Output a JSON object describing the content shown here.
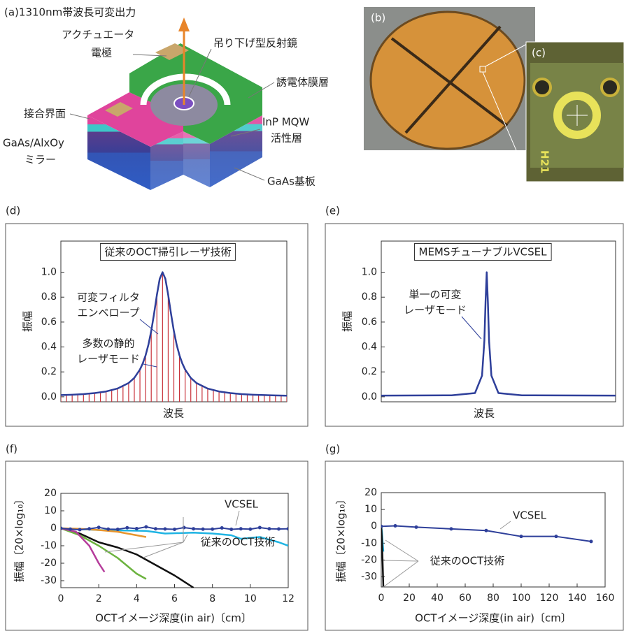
{
  "figure_a": {
    "label": "(a)1310nm帯波長可変出力",
    "callouts": [
      {
        "lines": [
          "アクチュエータ",
          "電極"
        ]
      },
      {
        "lines": [
          "吊り下げ型反射鏡"
        ]
      },
      {
        "lines": [
          "誘電体膜層"
        ]
      },
      {
        "lines": [
          "接合界面"
        ]
      },
      {
        "lines": [
          "InP MQW",
          "活性層"
        ]
      },
      {
        "lines": [
          "GaAs/AlxOy",
          "ミラー"
        ]
      },
      {
        "lines": [
          "GaAs基板"
        ]
      }
    ]
  },
  "photo_b": {
    "label": "(b)"
  },
  "photo_c": {
    "label": "(c)",
    "marking": "H21"
  },
  "chart_data": [
    {
      "type": "line",
      "panel_label": "(d)",
      "title": "従来のOCT掃引レーザ技術",
      "xlabel": "波長",
      "ylabel": "振幅",
      "xlim": [
        0,
        1
      ],
      "ylim": [
        -0.04,
        1.25
      ],
      "yticks": [
        {
          "value": 0,
          "label": "0.0"
        },
        0.2,
        0.4,
        0.6,
        0.8,
        {
          "value": 1,
          "label": "1.0"
        }
      ],
      "annotations": [
        {
          "lines": [
            "可変フィルタ",
            "エンベロープ"
          ]
        },
        {
          "lines": [
            "多数の静的",
            "レーザモード"
          ]
        }
      ],
      "series": [
        {
          "color": "#c8323a",
          "stems": true,
          "x": [
            0,
            0.025,
            0.05,
            0.075,
            0.1,
            0.125,
            0.15,
            0.175,
            0.2,
            0.225,
            0.25,
            0.275,
            0.3,
            0.325,
            0.35,
            0.375,
            0.4,
            0.425,
            0.45,
            0.475,
            0.5,
            0.525,
            0.55,
            0.575,
            0.6,
            0.625,
            0.65,
            0.675,
            0.7,
            0.725,
            0.75,
            0.775,
            0.8,
            0.825,
            0.85,
            0.875,
            0.9,
            0.925,
            0.95,
            0.975,
            1
          ],
          "values": [
            0.014,
            0.015,
            0.017,
            0.02,
            0.022,
            0.026,
            0.03,
            0.036,
            0.043,
            0.053,
            0.066,
            0.084,
            0.111,
            0.152,
            0.219,
            0.333,
            0.529,
            0.818,
            1.0,
            0.818,
            0.529,
            0.333,
            0.219,
            0.152,
            0.111,
            0.084,
            0.066,
            0.053,
            0.043,
            0.036,
            0.03,
            0.026,
            0.022,
            0.02,
            0.017,
            0.015,
            0.014,
            0.012,
            0.011,
            0.01,
            0.009
          ]
        },
        {
          "color": "#2e3f9a",
          "x": [
            0,
            0.05,
            0.1,
            0.15,
            0.2,
            0.25,
            0.3,
            0.325,
            0.35,
            0.3625,
            0.375,
            0.3875,
            0.4,
            0.4125,
            0.425,
            0.4375,
            0.45,
            0.4625,
            0.475,
            0.4875,
            0.5,
            0.5125,
            0.525,
            0.5375,
            0.55,
            0.575,
            0.6,
            0.65,
            0.7,
            0.75,
            0.8,
            0.85,
            0.9,
            0.95,
            1
          ],
          "values": [
            0.014,
            0.017,
            0.022,
            0.03,
            0.043,
            0.066,
            0.111,
            0.152,
            0.219,
            0.268,
            0.333,
            0.418,
            0.529,
            0.667,
            0.818,
            0.947,
            1,
            0.947,
            0.818,
            0.667,
            0.529,
            0.418,
            0.333,
            0.268,
            0.219,
            0.152,
            0.111,
            0.066,
            0.043,
            0.03,
            0.022,
            0.017,
            0.014,
            0.011,
            0.009
          ]
        }
      ]
    },
    {
      "type": "line",
      "panel_label": "(e)",
      "title": "MEMSチューナブルVCSEL",
      "xlabel": "波長",
      "ylabel": "振幅",
      "xlim": [
        0,
        1
      ],
      "ylim": [
        -0.04,
        1.25
      ],
      "yticks": [
        {
          "value": 0,
          "label": "0.0"
        },
        0.2,
        0.4,
        0.6,
        0.8,
        {
          "value": 1,
          "label": "1.0"
        }
      ],
      "annotations": [
        {
          "lines": [
            "単一の可変",
            "レーザモード"
          ]
        }
      ],
      "series": [
        {
          "color": "#2e3f9a",
          "x": [
            0,
            0.3,
            0.4,
            0.43,
            0.44,
            0.445,
            0.45,
            0.455,
            0.46,
            0.47,
            0.5,
            0.6,
            1
          ],
          "values": [
            0.01,
            0.012,
            0.03,
            0.17,
            0.45,
            0.76,
            1,
            0.76,
            0.45,
            0.17,
            0.03,
            0.012,
            0.01
          ]
        }
      ]
    },
    {
      "type": "line",
      "panel_label": "(f)",
      "xlabel": "OCTイメージ深度(in air)〔cm〕",
      "ylabel": "振幅〔20×log₁₀〕",
      "xlim": [
        0,
        12
      ],
      "ylim": [
        -34,
        20
      ],
      "xticks": [
        0,
        2,
        4,
        6,
        8,
        10,
        12
      ],
      "yticks": [
        20,
        10,
        0,
        -10,
        -20,
        -30
      ],
      "annotations": [
        {
          "lines": [
            "VCSEL"
          ]
        },
        {
          "lines": [
            "従来のOCT技術"
          ]
        }
      ],
      "series": [
        {
          "color": "#1fb4e3",
          "x": [
            0,
            2,
            4.5,
            5.5,
            7,
            8,
            9,
            9.5,
            10.5,
            11.5,
            12
          ],
          "values": [
            0,
            -1,
            -1.5,
            -3,
            -2.5,
            -3,
            -4,
            -6,
            -5,
            -8,
            -10
          ]
        },
        {
          "color": "#e8952d",
          "x": [
            0,
            1,
            2,
            3,
            4.5
          ],
          "values": [
            0,
            -0.3,
            -1,
            -2,
            -5
          ]
        },
        {
          "color": "#111111",
          "x": [
            0,
            1,
            2,
            3,
            4,
            5,
            6,
            7
          ],
          "values": [
            0,
            -3,
            -8,
            -11,
            -15,
            -21,
            -27,
            -34
          ]
        },
        {
          "color": "#6cb33f",
          "x": [
            0,
            1,
            2,
            3,
            4,
            4.5
          ],
          "values": [
            0,
            -4,
            -10,
            -17,
            -26,
            -29
          ]
        },
        {
          "color": "#b53c9b",
          "x": [
            0,
            0.8,
            1.5,
            2,
            2.3
          ],
          "values": [
            0,
            -2,
            -10,
            -20,
            -25
          ]
        },
        {
          "color": "#2e3f9a",
          "markers": true,
          "x": [
            0,
            0.5,
            1,
            1.5,
            2,
            2.5,
            3,
            3.5,
            4,
            4.5,
            5,
            5.5,
            6,
            6.5,
            7,
            7.5,
            8,
            8.5,
            9,
            9.5,
            10,
            10.5,
            11,
            11.5,
            12
          ],
          "values": [
            0,
            -0.5,
            -0.8,
            -0.3,
            0.5,
            -0.5,
            -0.6,
            0.3,
            -0.2,
            0.8,
            -0.3,
            -0.4,
            -0.6,
            0.4,
            -0.3,
            -0.5,
            -0.5,
            0.2,
            -0.6,
            -0.3,
            -0.5,
            0.4,
            -0.3,
            -0.4,
            -0.3
          ]
        }
      ]
    },
    {
      "type": "line",
      "panel_label": "(g)",
      "xlabel": "OCTイメージ深度(in air)〔cm〕",
      "ylabel": "振幅〔20×log₁₀〕",
      "xlim": [
        0,
        160
      ],
      "ylim": [
        -36,
        20
      ],
      "xticks": [
        0,
        20,
        40,
        60,
        80,
        100,
        120,
        140,
        160
      ],
      "yticks": [
        20,
        10,
        0,
        -10,
        -20,
        -30
      ],
      "annotations": [
        {
          "lines": [
            "VCSEL"
          ]
        },
        {
          "lines": [
            "従来のOCT技術"
          ]
        }
      ],
      "series": [
        {
          "color": "#1fb4e3",
          "x": [
            0,
            0.5,
            1,
            1.5
          ],
          "values": [
            0,
            -3,
            -10,
            -15
          ]
        },
        {
          "color": "#111111",
          "x": [
            0,
            0.5,
            1,
            1.5
          ],
          "values": [
            0,
            -8,
            -22,
            -36
          ]
        },
        {
          "color": "#2e3f9a",
          "markers": true,
          "x": [
            0,
            10,
            25,
            50,
            75,
            100,
            125,
            150
          ],
          "values": [
            0,
            0.3,
            -0.5,
            -1.5,
            -2.5,
            -6,
            -6,
            -9
          ]
        }
      ]
    }
  ]
}
